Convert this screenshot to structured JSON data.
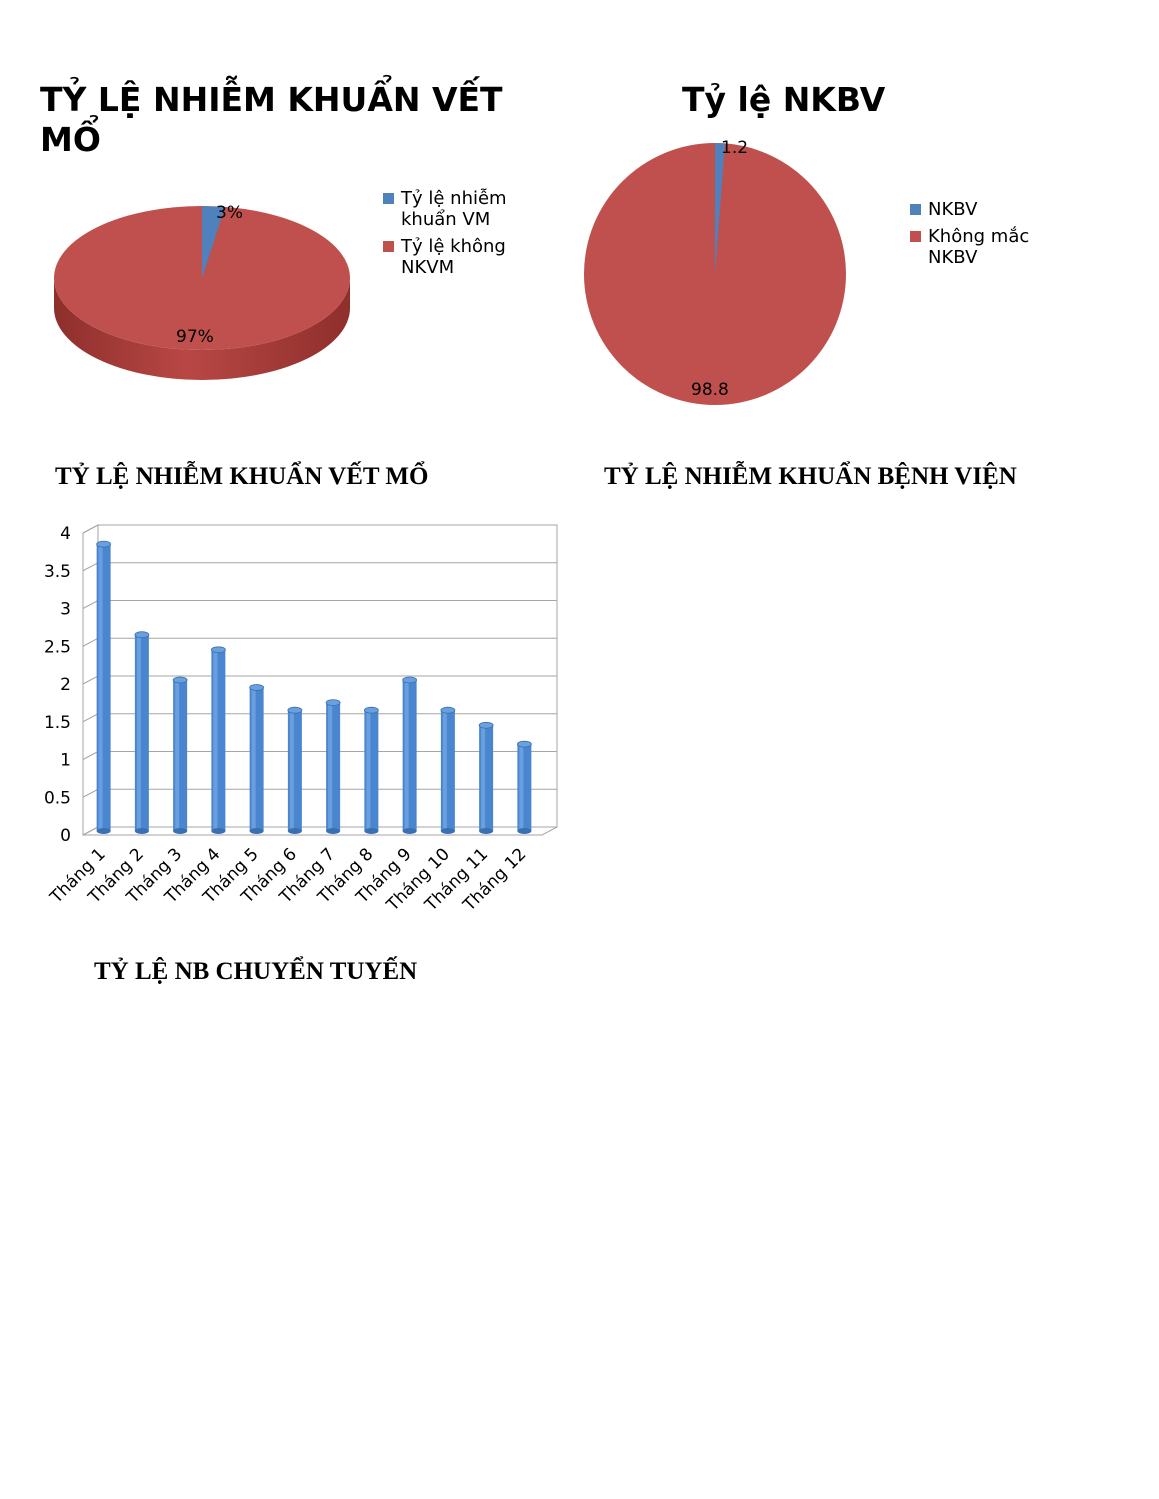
{
  "charts": {
    "surgical_pie": {
      "title": "TỶ LỆ NHIỄM KHUẨN VẾT MỔ",
      "legend": [
        "Tỷ lệ nhiễm khuẩn VM",
        "Tỷ lệ không NKVM"
      ],
      "labels": [
        "3%",
        "97%"
      ]
    },
    "nkbv_pie": {
      "title": "Tỷ lệ NKBV",
      "legend": [
        "NKBV",
        "Không mắc NKBV"
      ],
      "labels": [
        "1.2",
        "98.8"
      ]
    },
    "monthly_bar": {
      "yticks": [
        "0",
        "0.5",
        "1",
        "1.5",
        "2",
        "2.5",
        "3",
        "3.5",
        "4"
      ]
    }
  },
  "headings": {
    "surgical": "TỶ LỆ NHIỄM KHUẨN VẾT MỔ",
    "hospital": "TỶ LỆ NHIỄM KHUẨN BỆNH VIỆN",
    "transfer": "TỶ LỆ NB CHUYỂN TUYẾN"
  },
  "colors": {
    "blue": "#4f81bd",
    "red": "#c0504d",
    "bar": "#4a86d0"
  },
  "chart_data": [
    {
      "type": "pie",
      "title": "TỶ LỆ NHIỄM KHUẨN VẾT MỔ",
      "categories": [
        "Tỷ lệ nhiễm khuẩn VM",
        "Tỷ lệ không NKVM"
      ],
      "values": [
        3,
        97
      ],
      "legend": "right"
    },
    {
      "type": "pie",
      "title": "Tỷ lệ NKBV",
      "categories": [
        "NKBV",
        "Không mắc NKBV"
      ],
      "values": [
        1.2,
        98.8
      ],
      "legend": "right"
    },
    {
      "type": "bar",
      "categories": [
        "Tháng 1",
        "Tháng 2",
        "Tháng 3",
        "Tháng 4",
        "Tháng 5",
        "Tháng 6",
        "Tháng 7",
        "Tháng 8",
        "Tháng 9",
        "Tháng 10",
        "Tháng 11",
        "Tháng 12"
      ],
      "values": [
        3.8,
        2.6,
        2.0,
        2.4,
        1.9,
        1.6,
        1.7,
        1.6,
        2.0,
        1.6,
        1.4,
        1.15
      ],
      "ylim": [
        0,
        4
      ],
      "grid": true
    }
  ]
}
